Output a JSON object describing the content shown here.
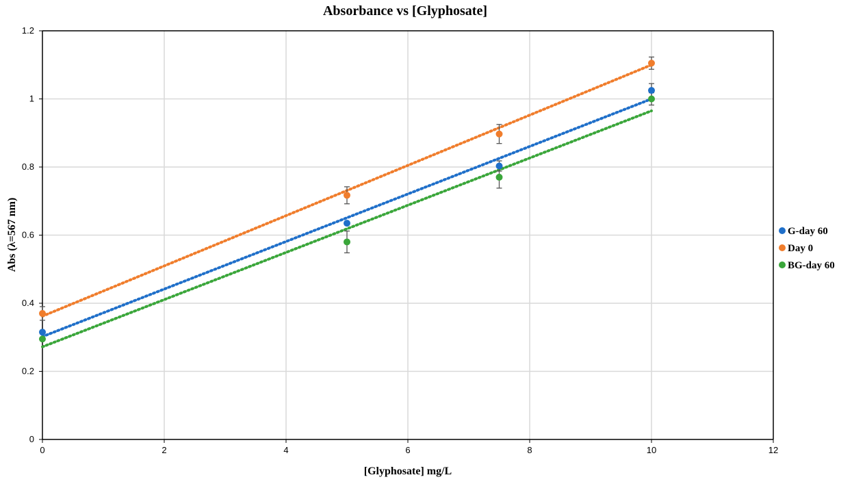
{
  "chart_data": {
    "type": "scatter",
    "title": "Absorbance vs [Glyphosate]",
    "xlabel": "[Glyphosate] mg/L",
    "ylabel": "Abs (λ=567 nm)",
    "xlim": [
      0,
      12
    ],
    "ylim": [
      0,
      1.2
    ],
    "xticks": [
      0,
      2,
      4,
      6,
      8,
      10,
      12
    ],
    "yticks": [
      0,
      0.2,
      0.4,
      0.6,
      0.8,
      1,
      1.2
    ],
    "xtick_labels": [
      "0",
      "2",
      "4",
      "6",
      "8",
      "10",
      "12"
    ],
    "ytick_labels": [
      "0",
      "0.2",
      "0.4",
      "0.6",
      "0.8",
      "1",
      "1.2"
    ],
    "grid": true,
    "legend_position": "right",
    "trendline": "linear, dotted",
    "series": [
      {
        "name": "G-day 60",
        "color": "#1f6fc9",
        "x": [
          0,
          5,
          7.5,
          10
        ],
        "y": [
          0.315,
          0.635,
          0.803,
          1.025
        ],
        "error": [
          0,
          0,
          0.015,
          0.02
        ],
        "trend": {
          "x": [
            0,
            10
          ],
          "y": [
            0.302,
            1.0
          ]
        }
      },
      {
        "name": "Day 0",
        "color": "#f07d2c",
        "x": [
          0,
          5,
          7.5,
          10
        ],
        "y": [
          0.37,
          0.717,
          0.897,
          1.105
        ],
        "error": [
          0.02,
          0.025,
          0.028,
          0.018
        ],
        "trend": {
          "x": [
            0,
            10
          ],
          "y": [
            0.362,
            1.1
          ]
        }
      },
      {
        "name": "BG-day 60",
        "color": "#3aa63a",
        "x": [
          0,
          5,
          7.5,
          10
        ],
        "y": [
          0.295,
          0.58,
          0.77,
          1.0
        ],
        "error": [
          0,
          0.032,
          0.032,
          0.018
        ],
        "trend": {
          "x": [
            0,
            10
          ],
          "y": [
            0.272,
            0.965
          ]
        }
      }
    ]
  }
}
